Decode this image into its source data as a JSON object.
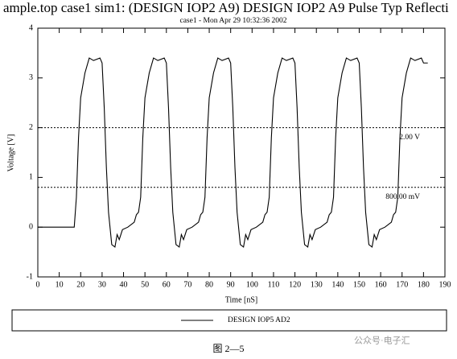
{
  "chart_data": {
    "type": "line",
    "title": "ample.top case1 sim1: (DESIGN IOP2 A9) DESIGN IOP2 A9 Pulse Typ Reflecti",
    "subtitle": "case1 - Mon Apr 29 10:32:36 2002",
    "x_label": "Time [nS]",
    "y_label": "Voltage [V]",
    "xlim": [
      0,
      190
    ],
    "ylim": [
      -1,
      4
    ],
    "xticks": [
      0,
      10,
      20,
      30,
      40,
      50,
      60,
      70,
      80,
      90,
      100,
      110,
      120,
      130,
      140,
      150,
      160,
      170,
      180,
      190
    ],
    "yticks": [
      -1,
      0,
      1,
      2,
      3,
      4
    ],
    "x": [
      0,
      17,
      18,
      19,
      20,
      22,
      24,
      26,
      29,
      30,
      31,
      32,
      33,
      34.5,
      36,
      37,
      38,
      39.5,
      42,
      45,
      46,
      47,
      48,
      49,
      50,
      52,
      54,
      56,
      59,
      60,
      61,
      62,
      63,
      64.5,
      66,
      67,
      68,
      69.5,
      72,
      75,
      76,
      77,
      78,
      79,
      80,
      82,
      84,
      86,
      89,
      90,
      91,
      92,
      93,
      94.5,
      96,
      97,
      98,
      99.5,
      102,
      105,
      106,
      107,
      108,
      109,
      110,
      112,
      114,
      116,
      119,
      120,
      121,
      122,
      123,
      124.5,
      126,
      127,
      128,
      129.5,
      132,
      135,
      136,
      137,
      138,
      139,
      140,
      142,
      144,
      146,
      149,
      150,
      151,
      152,
      153,
      154.5,
      156,
      157,
      158,
      159.5,
      162,
      165,
      166,
      167,
      168,
      169,
      170,
      172,
      174,
      176,
      179,
      180,
      182
    ],
    "series": [
      {
        "name": "DESIGN IOP5 AD2",
        "color": "#000000",
        "values": [
          0,
          0,
          0.6,
          1.8,
          2.6,
          3.1,
          3.4,
          3.35,
          3.4,
          3.3,
          2.4,
          1.2,
          0.3,
          -0.35,
          -0.4,
          -0.15,
          -0.25,
          -0.05,
          0,
          0.1,
          0.25,
          0.3,
          0.6,
          1.8,
          2.6,
          3.1,
          3.4,
          3.35,
          3.4,
          3.3,
          2.4,
          1.2,
          0.3,
          -0.35,
          -0.4,
          -0.15,
          -0.25,
          -0.05,
          0,
          0.1,
          0.25,
          0.3,
          0.6,
          1.8,
          2.6,
          3.1,
          3.4,
          3.35,
          3.4,
          3.3,
          2.4,
          1.2,
          0.3,
          -0.35,
          -0.4,
          -0.15,
          -0.25,
          -0.05,
          0,
          0.1,
          0.25,
          0.3,
          0.6,
          1.8,
          2.6,
          3.1,
          3.4,
          3.35,
          3.4,
          3.3,
          2.4,
          1.2,
          0.3,
          -0.35,
          -0.4,
          -0.15,
          -0.25,
          -0.05,
          0,
          0.1,
          0.25,
          0.3,
          0.6,
          1.8,
          2.6,
          3.1,
          3.4,
          3.35,
          3.4,
          3.3,
          2.4,
          1.2,
          0.3,
          -0.35,
          -0.4,
          -0.15,
          -0.25,
          -0.05,
          0,
          0.1,
          0.25,
          0.3,
          0.6,
          1.8,
          2.6,
          3.1,
          3.4,
          3.35,
          3.4,
          3.3,
          3.3
        ]
      }
    ],
    "ref_lines": [
      {
        "value": 2,
        "label": "2.00 V"
      },
      {
        "value": 0.8,
        "label": "800.00 mV"
      }
    ],
    "caption": "图 2—5",
    "watermark": "公众号·电子汇"
  }
}
